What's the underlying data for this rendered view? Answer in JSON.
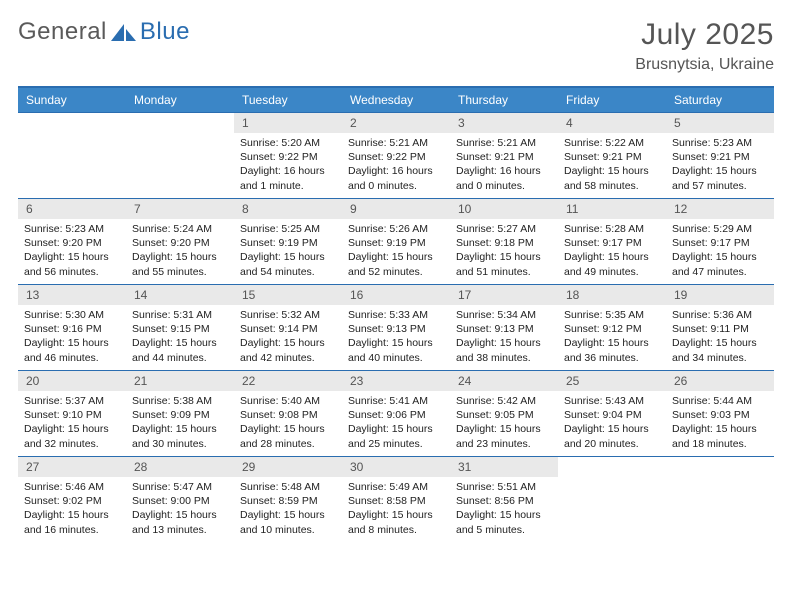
{
  "brand": {
    "part1": "General",
    "part2": "Blue"
  },
  "title": "July 2025",
  "location": "Brusnytsia, Ukraine",
  "colors": {
    "header_bg": "#3b86c7",
    "header_border": "#2a6db0",
    "daynum_bg": "#e9e9e9",
    "text": "#333333",
    "title_text": "#555555"
  },
  "typography": {
    "title_fontsize": 30,
    "location_fontsize": 16,
    "header_fontsize": 12,
    "daynum_fontsize": 12,
    "cell_fontsize": 10.5
  },
  "weekdays": [
    "Sunday",
    "Monday",
    "Tuesday",
    "Wednesday",
    "Thursday",
    "Friday",
    "Saturday"
  ],
  "weeks": [
    [
      null,
      null,
      {
        "num": "1",
        "sunrise": "5:20 AM",
        "sunset": "9:22 PM",
        "daylight": "16 hours and 1 minute."
      },
      {
        "num": "2",
        "sunrise": "5:21 AM",
        "sunset": "9:22 PM",
        "daylight": "16 hours and 0 minutes."
      },
      {
        "num": "3",
        "sunrise": "5:21 AM",
        "sunset": "9:21 PM",
        "daylight": "16 hours and 0 minutes."
      },
      {
        "num": "4",
        "sunrise": "5:22 AM",
        "sunset": "9:21 PM",
        "daylight": "15 hours and 58 minutes."
      },
      {
        "num": "5",
        "sunrise": "5:23 AM",
        "sunset": "9:21 PM",
        "daylight": "15 hours and 57 minutes."
      }
    ],
    [
      {
        "num": "6",
        "sunrise": "5:23 AM",
        "sunset": "9:20 PM",
        "daylight": "15 hours and 56 minutes."
      },
      {
        "num": "7",
        "sunrise": "5:24 AM",
        "sunset": "9:20 PM",
        "daylight": "15 hours and 55 minutes."
      },
      {
        "num": "8",
        "sunrise": "5:25 AM",
        "sunset": "9:19 PM",
        "daylight": "15 hours and 54 minutes."
      },
      {
        "num": "9",
        "sunrise": "5:26 AM",
        "sunset": "9:19 PM",
        "daylight": "15 hours and 52 minutes."
      },
      {
        "num": "10",
        "sunrise": "5:27 AM",
        "sunset": "9:18 PM",
        "daylight": "15 hours and 51 minutes."
      },
      {
        "num": "11",
        "sunrise": "5:28 AM",
        "sunset": "9:17 PM",
        "daylight": "15 hours and 49 minutes."
      },
      {
        "num": "12",
        "sunrise": "5:29 AM",
        "sunset": "9:17 PM",
        "daylight": "15 hours and 47 minutes."
      }
    ],
    [
      {
        "num": "13",
        "sunrise": "5:30 AM",
        "sunset": "9:16 PM",
        "daylight": "15 hours and 46 minutes."
      },
      {
        "num": "14",
        "sunrise": "5:31 AM",
        "sunset": "9:15 PM",
        "daylight": "15 hours and 44 minutes."
      },
      {
        "num": "15",
        "sunrise": "5:32 AM",
        "sunset": "9:14 PM",
        "daylight": "15 hours and 42 minutes."
      },
      {
        "num": "16",
        "sunrise": "5:33 AM",
        "sunset": "9:13 PM",
        "daylight": "15 hours and 40 minutes."
      },
      {
        "num": "17",
        "sunrise": "5:34 AM",
        "sunset": "9:13 PM",
        "daylight": "15 hours and 38 minutes."
      },
      {
        "num": "18",
        "sunrise": "5:35 AM",
        "sunset": "9:12 PM",
        "daylight": "15 hours and 36 minutes."
      },
      {
        "num": "19",
        "sunrise": "5:36 AM",
        "sunset": "9:11 PM",
        "daylight": "15 hours and 34 minutes."
      }
    ],
    [
      {
        "num": "20",
        "sunrise": "5:37 AM",
        "sunset": "9:10 PM",
        "daylight": "15 hours and 32 minutes."
      },
      {
        "num": "21",
        "sunrise": "5:38 AM",
        "sunset": "9:09 PM",
        "daylight": "15 hours and 30 minutes."
      },
      {
        "num": "22",
        "sunrise": "5:40 AM",
        "sunset": "9:08 PM",
        "daylight": "15 hours and 28 minutes."
      },
      {
        "num": "23",
        "sunrise": "5:41 AM",
        "sunset": "9:06 PM",
        "daylight": "15 hours and 25 minutes."
      },
      {
        "num": "24",
        "sunrise": "5:42 AM",
        "sunset": "9:05 PM",
        "daylight": "15 hours and 23 minutes."
      },
      {
        "num": "25",
        "sunrise": "5:43 AM",
        "sunset": "9:04 PM",
        "daylight": "15 hours and 20 minutes."
      },
      {
        "num": "26",
        "sunrise": "5:44 AM",
        "sunset": "9:03 PM",
        "daylight": "15 hours and 18 minutes."
      }
    ],
    [
      {
        "num": "27",
        "sunrise": "5:46 AM",
        "sunset": "9:02 PM",
        "daylight": "15 hours and 16 minutes."
      },
      {
        "num": "28",
        "sunrise": "5:47 AM",
        "sunset": "9:00 PM",
        "daylight": "15 hours and 13 minutes."
      },
      {
        "num": "29",
        "sunrise": "5:48 AM",
        "sunset": "8:59 PM",
        "daylight": "15 hours and 10 minutes."
      },
      {
        "num": "30",
        "sunrise": "5:49 AM",
        "sunset": "8:58 PM",
        "daylight": "15 hours and 8 minutes."
      },
      {
        "num": "31",
        "sunrise": "5:51 AM",
        "sunset": "8:56 PM",
        "daylight": "15 hours and 5 minutes."
      },
      null,
      null
    ]
  ],
  "labels": {
    "sunrise": "Sunrise:",
    "sunset": "Sunset:",
    "daylight": "Daylight:"
  }
}
